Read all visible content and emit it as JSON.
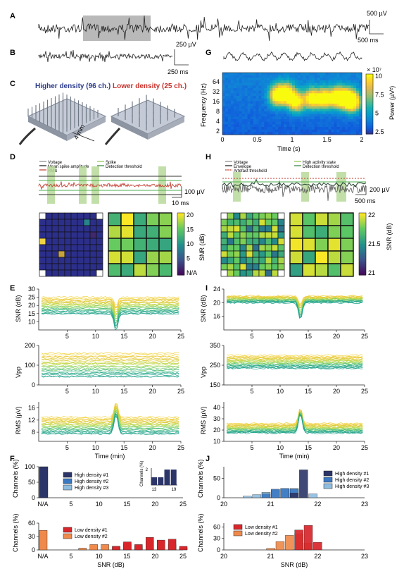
{
  "panels": {
    "A": "A",
    "B": "B",
    "C": "C",
    "D": "D",
    "E": "E",
    "F": "F",
    "G": "G",
    "H": "H",
    "I": "I",
    "J": "J"
  },
  "scalebars": {
    "a_v": "500 µV",
    "a_t": "500 ms",
    "b_v": "250 µV",
    "b_t": "250 ms",
    "c_mm": "4 mm",
    "d_v": "100 µV",
    "d_t": "10 ms",
    "h_v": "200 µV",
    "h_t": "500 ms"
  },
  "panel_c": {
    "left_title": "Higher density (96 ch.)",
    "right_title": "Lower density (25 ch.)",
    "left_color": "#2b3a8a",
    "right_color": "#c8312b"
  },
  "panel_d": {
    "legend": [
      "Voltage",
      "Mean spike amplitude",
      "RMS",
      "Spike",
      "Detection threshold"
    ],
    "cbar": {
      "label": "SNR (dB)",
      "ticks": [
        "20",
        "15",
        "10",
        "5",
        "N/A"
      ]
    }
  },
  "panel_g": {
    "cbar_label": "Power (µV²)",
    "cbar_exp": "× 10⁷",
    "cbar_ticks": [
      "10",
      "7.5",
      "5",
      "2.5"
    ],
    "yticks": [
      "64",
      "32",
      "16",
      "8",
      "4",
      "2"
    ],
    "ylabel": "Frequency (Hz)",
    "xticks": [
      "0",
      "0.5",
      "1",
      "1.5",
      "2"
    ],
    "xlabel": "Time (s)"
  },
  "panel_h": {
    "legend": [
      "Voltage",
      "Envelope",
      "Artefact threshold",
      "High activity state",
      "Detection threshold"
    ],
    "cbar": {
      "label": "SNR (dB)",
      "ticks": [
        "22",
        "21.5",
        "21"
      ]
    }
  },
  "chart_data": [
    {
      "panel": "E",
      "type": "line",
      "ylabel": "SNR (dB)",
      "yticks": [
        "10",
        "15",
        "20",
        "25",
        "30"
      ],
      "ylim": [
        5,
        30
      ],
      "xlim": [
        0,
        25
      ],
      "xticks": [
        "5",
        "10",
        "15",
        "20",
        "25"
      ]
    },
    {
      "panel": "E",
      "type": "line",
      "ylabel": "Vpp",
      "yticks": [
        "0",
        "100",
        "200"
      ],
      "ylim": [
        0,
        200
      ],
      "xlim": [
        0,
        25
      ],
      "xticks": [
        "5",
        "10",
        "15",
        "20",
        "25"
      ]
    },
    {
      "panel": "E",
      "type": "line",
      "ylabel": "RMS (µV)",
      "yticks": [
        "8",
        "12",
        "16"
      ],
      "ylim": [
        5,
        18
      ],
      "xlim": [
        0,
        25
      ],
      "xticks": [
        "5",
        "10",
        "15",
        "20",
        "25"
      ],
      "xlabel": "Time (min)"
    },
    {
      "panel": "I",
      "type": "line",
      "ylabel": "SNR (dB)",
      "yticks": [
        "16",
        "20",
        "24"
      ],
      "ylim": [
        12,
        24
      ],
      "xlim": [
        0,
        25
      ],
      "xticks": [
        "5",
        "10",
        "15",
        "20",
        "25"
      ]
    },
    {
      "panel": "I",
      "type": "line",
      "ylabel": "Vpp",
      "yticks": [
        "150",
        "250",
        "350"
      ],
      "ylim": [
        150,
        350
      ],
      "xlim": [
        0,
        25
      ],
      "xticks": [
        "5",
        "10",
        "15",
        "20",
        "25"
      ]
    },
    {
      "panel": "I",
      "type": "line",
      "ylabel": "RMS (µV)",
      "yticks": [
        "10",
        "20",
        "30",
        "40"
      ],
      "ylim": [
        10,
        45
      ],
      "xlim": [
        0,
        25
      ],
      "xticks": [
        "5",
        "10",
        "15",
        "20",
        "25"
      ],
      "xlabel": "Time (min)"
    },
    {
      "panel": "F",
      "type": "bar",
      "ylabel": "Channels (%)",
      "yticks": [
        "0",
        "50",
        "100"
      ],
      "ylim": [
        0,
        100
      ],
      "xticks": [
        "N/A",
        "5",
        "10",
        "15",
        "20",
        "25"
      ],
      "series": [
        {
          "name": "High density #1",
          "color": "#2c3568",
          "values": [
            100
          ]
        },
        {
          "name": "High density #2",
          "color": "#3a78c2",
          "values": [
            100
          ]
        },
        {
          "name": "High density #3",
          "color": "#8fbde0",
          "values": [
            100
          ]
        }
      ],
      "inset": {
        "ylabel": "Channels (%)",
        "ytick": "2",
        "xticks": [
          "13",
          "19"
        ],
        "values": [
          [
            13,
            1
          ],
          [
            15,
            1
          ],
          [
            17,
            2
          ],
          [
            19,
            2
          ]
        ]
      }
    },
    {
      "panel": "F",
      "type": "bar",
      "ylabel": "Channels (%)",
      "yticks": [
        "0",
        "30",
        "60"
      ],
      "ylim": [
        0,
        60
      ],
      "xticks": [
        "N/A",
        "5",
        "10",
        "15",
        "20",
        "25"
      ],
      "xlabel": "SNR (dB)",
      "series": [
        {
          "name": "Low density #1",
          "color": "#d9262b",
          "values": [
            [
              13,
              8
            ],
            [
              15,
              18
            ],
            [
              17,
              12
            ],
            [
              19,
              28
            ],
            [
              21,
              22
            ],
            [
              23,
              24
            ],
            [
              25,
              8
            ]
          ]
        },
        {
          "name": "Low density #2",
          "color": "#ef8a4c",
          "values": [
            [
              0,
              44
            ],
            [
              7,
              4
            ],
            [
              9,
              12
            ],
            [
              11,
              12
            ],
            [
              13,
              8
            ],
            [
              15,
              14
            ],
            [
              17,
              8
            ],
            [
              19,
              20
            ],
            [
              21,
              20
            ],
            [
              23,
              12
            ],
            [
              25,
              4
            ]
          ]
        }
      ]
    },
    {
      "panel": "J",
      "type": "bar",
      "ylabel": "Channels (%)",
      "yticks": [
        "0",
        "50"
      ],
      "ylim": [
        0,
        80
      ],
      "xticks": [
        "20",
        "21",
        "22",
        "23"
      ],
      "series": [
        {
          "name": "High density #1",
          "color": "#2c3568",
          "values": [
            [
              21.5,
              12
            ],
            [
              21.7,
              72
            ]
          ]
        },
        {
          "name": "High density #2",
          "color": "#3a78c2",
          "values": [
            [
              20.9,
              10
            ],
            [
              21.1,
              22
            ],
            [
              21.3,
              24
            ],
            [
              21.5,
              22
            ]
          ]
        },
        {
          "name": "High density #3",
          "color": "#8fbde0",
          "values": [
            [
              20.5,
              4
            ],
            [
              20.7,
              8
            ],
            [
              20.9,
              14
            ],
            [
              21.1,
              20
            ],
            [
              21.3,
              22
            ],
            [
              21.5,
              24
            ],
            [
              21.9,
              10
            ]
          ]
        }
      ]
    },
    {
      "panel": "J",
      "type": "bar",
      "ylabel": "Channels (%)",
      "yticks": [
        "0",
        "30",
        "60"
      ],
      "ylim": [
        0,
        70
      ],
      "xticks": [
        "20",
        "21",
        "22",
        "23"
      ],
      "xlabel": "SNR (dB)",
      "series": [
        {
          "name": "Low density #1",
          "color": "#d9262b",
          "values": [
            [
              21.6,
              52
            ],
            [
              21.8,
              64
            ],
            [
              22.0,
              20
            ]
          ]
        },
        {
          "name": "Low density #2",
          "color": "#ef8a4c",
          "values": [
            [
              21.0,
              4
            ],
            [
              21.2,
              22
            ],
            [
              21.4,
              38
            ],
            [
              21.6,
              42
            ],
            [
              21.8,
              18
            ]
          ]
        }
      ]
    }
  ]
}
